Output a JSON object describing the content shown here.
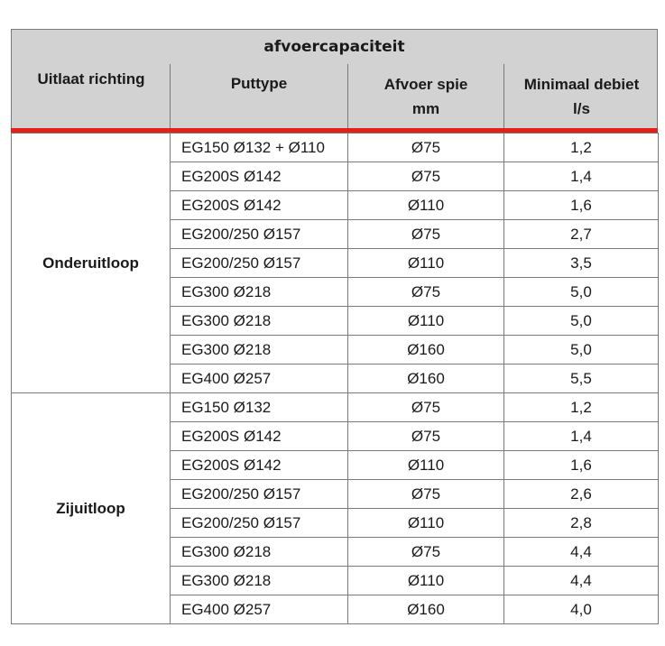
{
  "table": {
    "title": "afvoercapaciteit",
    "headers": {
      "richting": "Uitlaat richting",
      "puttype": "Puttype",
      "spie_line1": "Afvoer spie",
      "spie_line2": "mm",
      "debiet_line1": "Minimaal debiet",
      "debiet_line2": "l/s"
    },
    "accent_color": "#e32119",
    "header_bg": "#d2d2d2",
    "groups": [
      {
        "label": "Onderuitloop",
        "rows": [
          {
            "puttype": "EG150 Ø132 + Ø110",
            "spie": "Ø75",
            "debiet": "1,2"
          },
          {
            "puttype": "EG200S Ø142",
            "spie": "Ø75",
            "debiet": "1,4"
          },
          {
            "puttype": "EG200S Ø142",
            "spie": "Ø110",
            "debiet": "1,6"
          },
          {
            "puttype": "EG200/250 Ø157",
            "spie": "Ø75",
            "debiet": "2,7"
          },
          {
            "puttype": "EG200/250 Ø157",
            "spie": "Ø110",
            "debiet": "3,5"
          },
          {
            "puttype": "EG300 Ø218",
            "spie": "Ø75",
            "debiet": "5,0"
          },
          {
            "puttype": "EG300 Ø218",
            "spie": "Ø110",
            "debiet": "5,0"
          },
          {
            "puttype": "EG300 Ø218",
            "spie": "Ø160",
            "debiet": "5,0"
          },
          {
            "puttype": "EG400 Ø257",
            "spie": "Ø160",
            "debiet": "5,5"
          }
        ]
      },
      {
        "label": "Zijuitloop",
        "rows": [
          {
            "puttype": "EG150 Ø132",
            "spie": "Ø75",
            "debiet": "1,2"
          },
          {
            "puttype": "EG200S Ø142",
            "spie": "Ø75",
            "debiet": "1,4"
          },
          {
            "puttype": "EG200S Ø142",
            "spie": "Ø110",
            "debiet": "1,6"
          },
          {
            "puttype": "EG200/250 Ø157",
            "spie": "Ø75",
            "debiet": "2,6"
          },
          {
            "puttype": "EG200/250 Ø157",
            "spie": "Ø110",
            "debiet": "2,8"
          },
          {
            "puttype": "EG300 Ø218",
            "spie": "Ø75",
            "debiet": "4,4"
          },
          {
            "puttype": "EG300 Ø218",
            "spie": "Ø110",
            "debiet": "4,4"
          },
          {
            "puttype": "EG400 Ø257",
            "spie": "Ø160",
            "debiet": "4,0"
          }
        ]
      }
    ]
  }
}
